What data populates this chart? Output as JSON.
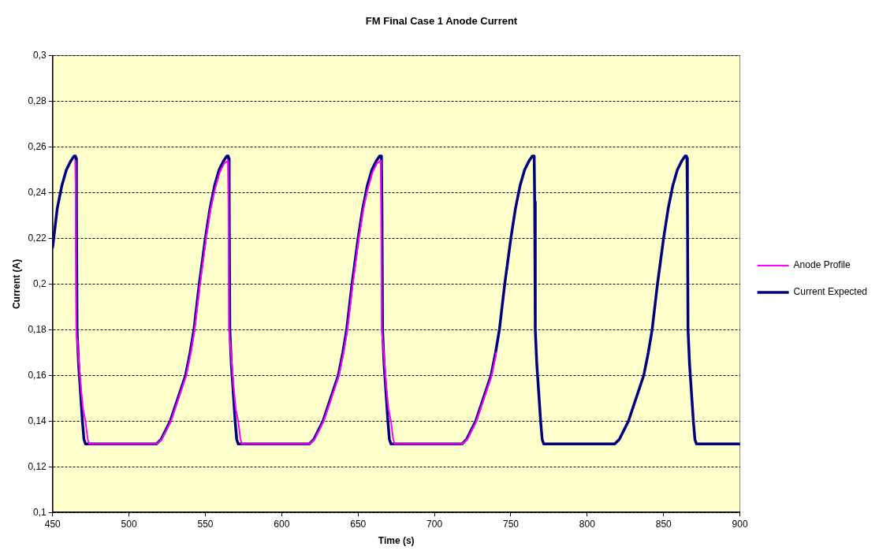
{
  "chart_data": {
    "type": "line",
    "title": "FM Final Case 1 Anode Current",
    "xlabel": "Time (s)",
    "ylabel": "Current (A)",
    "xlim": [
      450,
      900
    ],
    "xticks": [
      450,
      500,
      550,
      600,
      650,
      700,
      750,
      800,
      850,
      900
    ],
    "ylim": [
      0.1,
      0.3
    ],
    "yticks": [
      {
        "value": 0.1,
        "label": "0,1"
      },
      {
        "value": 0.12,
        "label": "0,12"
      },
      {
        "value": 0.14,
        "label": "0,14"
      },
      {
        "value": 0.16,
        "label": "0,16"
      },
      {
        "value": 0.18,
        "label": "0,18"
      },
      {
        "value": 0.2,
        "label": "0,2"
      },
      {
        "value": 0.22,
        "label": "0,22"
      },
      {
        "value": 0.24,
        "label": "0,24"
      },
      {
        "value": 0.26,
        "label": "0,26"
      },
      {
        "value": 0.28,
        "label": "0,28"
      },
      {
        "value": 0.3,
        "label": "0,3"
      }
    ],
    "grid": "y",
    "legend": "right",
    "marker": "none",
    "line_style": "solid",
    "series": [
      {
        "name": "Current Expected",
        "color": "#000080",
        "x": [
          450,
          453,
          456,
          459,
          462,
          464,
          465,
          465.3,
          465.6,
          466,
          467,
          468.5,
          469.5,
          470.5,
          471.5,
          518,
          521,
          524,
          527,
          530,
          533,
          537,
          540,
          542.5,
          546,
          550,
          553,
          556,
          559,
          562,
          564,
          565,
          565.3,
          565.6,
          566,
          567,
          568.5,
          569.5,
          570.5,
          571.5,
          618,
          621,
          624,
          627,
          630,
          633,
          637,
          640,
          642.5,
          646,
          650,
          653,
          656,
          659,
          662,
          664,
          665,
          665.3,
          665.6,
          666,
          667,
          668.5,
          669.5,
          670.5,
          671.5,
          718,
          721,
          724,
          727,
          730,
          733,
          737,
          740,
          742.5,
          746,
          750,
          753,
          756,
          759,
          762,
          764,
          765,
          765.3,
          765.6,
          766,
          767,
          768.5,
          769.5,
          770.5,
          771.5,
          818,
          821,
          824,
          827,
          830,
          833,
          837,
          840,
          842.5,
          846,
          850,
          853,
          856,
          859,
          862,
          864,
          865,
          865.3,
          865.6,
          866,
          867,
          868.5,
          869.5,
          870.5,
          871.5,
          900
        ],
        "values": [
          0.216,
          0.233,
          0.243,
          0.25,
          0.254,
          0.256,
          0.256,
          0.255,
          0.236,
          0.18,
          0.165,
          0.15,
          0.14,
          0.132,
          0.13,
          0.13,
          0.132,
          0.136,
          0.14,
          0.146,
          0.152,
          0.16,
          0.17,
          0.18,
          0.2,
          0.22,
          0.233,
          0.243,
          0.25,
          0.254,
          0.256,
          0.256,
          0.255,
          0.236,
          0.18,
          0.165,
          0.15,
          0.14,
          0.132,
          0.13,
          0.13,
          0.132,
          0.136,
          0.14,
          0.146,
          0.152,
          0.16,
          0.17,
          0.18,
          0.2,
          0.22,
          0.233,
          0.243,
          0.25,
          0.254,
          0.256,
          0.256,
          0.255,
          0.236,
          0.18,
          0.165,
          0.15,
          0.14,
          0.132,
          0.13,
          0.13,
          0.132,
          0.136,
          0.14,
          0.146,
          0.152,
          0.16,
          0.17,
          0.18,
          0.2,
          0.22,
          0.233,
          0.243,
          0.25,
          0.254,
          0.256,
          0.256,
          0.255,
          0.236,
          0.18,
          0.165,
          0.15,
          0.14,
          0.132,
          0.13,
          0.13,
          0.132,
          0.136,
          0.14,
          0.146,
          0.152,
          0.16,
          0.17,
          0.18,
          0.2,
          0.22,
          0.233,
          0.243,
          0.25,
          0.254,
          0.256,
          0.256,
          0.255,
          0.236,
          0.18,
          0.165,
          0.15,
          0.14,
          0.132,
          0.13,
          0.13
        ]
      },
      {
        "name": "Anode Profile",
        "color": "#ff00ff",
        "x": [
          465,
          465.5,
          467,
          468.5,
          470,
          471.5,
          473,
          474,
          518,
          521.5,
          524.5,
          527.5,
          530.5,
          533.5,
          537.5,
          540.5,
          543,
          546.5,
          550.5,
          553.5,
          556.5,
          559.5,
          562.5,
          565,
          565.5,
          567,
          568.5,
          570,
          571.5,
          573,
          574,
          618,
          621.5,
          624.5,
          627.5,
          630.5,
          633.5,
          637.5,
          640.5,
          643,
          646.5,
          650.5,
          653.5,
          656.5,
          659.5,
          662.5,
          665,
          665.5,
          667,
          668.5,
          670,
          671.5,
          673,
          674,
          718,
          721.5,
          724.5,
          727.5,
          730.5,
          733.5,
          737.5,
          740.5
        ],
        "values": [
          0.254,
          0.18,
          0.168,
          0.155,
          0.145,
          0.14,
          0.132,
          0.13,
          0.13,
          0.132,
          0.136,
          0.14,
          0.146,
          0.152,
          0.16,
          0.17,
          0.18,
          0.2,
          0.22,
          0.233,
          0.242,
          0.249,
          0.253,
          0.254,
          0.18,
          0.168,
          0.155,
          0.145,
          0.14,
          0.132,
          0.13,
          0.13,
          0.132,
          0.136,
          0.14,
          0.146,
          0.152,
          0.16,
          0.17,
          0.18,
          0.2,
          0.22,
          0.233,
          0.242,
          0.249,
          0.253,
          0.254,
          0.18,
          0.168,
          0.155,
          0.145,
          0.14,
          0.132,
          0.13,
          0.13,
          0.132,
          0.136,
          0.14,
          0.146,
          0.152,
          0.16,
          0.17
        ]
      }
    ]
  }
}
